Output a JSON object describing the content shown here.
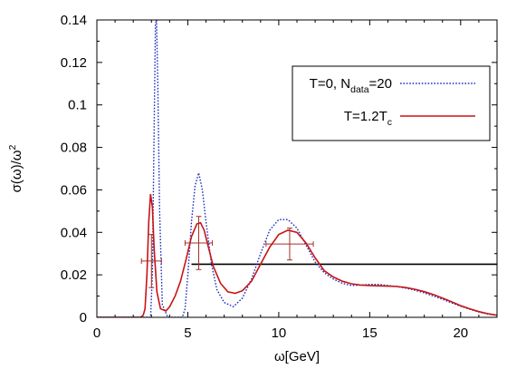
{
  "chart_data": {
    "type": "line",
    "xlabel": "ω[GeV]",
    "ylabel_main": "σ(ω)/ω",
    "ylabel_sup": "2",
    "xlim": [
      0,
      22
    ],
    "ylim": [
      0,
      0.14
    ],
    "xticks": [
      0,
      5,
      10,
      15,
      20
    ],
    "yticks": [
      0,
      0.02,
      0.04,
      0.06,
      0.08,
      0.1,
      0.12,
      0.14
    ],
    "xtick_labels": [
      "0",
      "5",
      "10",
      "15",
      "20"
    ],
    "ytick_labels": [
      "0",
      "0.02",
      "0.04",
      "0.06",
      "0.08",
      "0.1",
      "0.12",
      "0.14"
    ],
    "grid": false,
    "legend_position": "top-right",
    "series": [
      {
        "label_main": "T=0, N",
        "label_sub": "data",
        "label_tail": "=20",
        "color": "#1f2fbf",
        "style": "dotted",
        "x": [
          0,
          2.6,
          2.8,
          2.95,
          3.05,
          3.15,
          3.22,
          3.28,
          3.35,
          3.45,
          3.6,
          3.9,
          4.3,
          4.7,
          4.85,
          5.0,
          5.2,
          5.4,
          5.6,
          5.8,
          6.0,
          6.3,
          6.6,
          7.0,
          7.5,
          8.0,
          8.5,
          9.0,
          9.5,
          10.0,
          10.5,
          11.0,
          11.5,
          12.0,
          12.5,
          13.0,
          13.5,
          14.0,
          14.5,
          15.0,
          15.5,
          16.0,
          16.5,
          17.0,
          17.5,
          18.0,
          18.5,
          19.0,
          19.5,
          20.0,
          20.5,
          21.0,
          21.5,
          22.0
        ],
        "y": [
          0,
          0,
          0,
          0.0,
          0.02,
          0.09,
          0.138,
          0.14,
          0.11,
          0.05,
          0.006,
          0.0,
          0.0,
          0.0,
          0.004,
          0.02,
          0.045,
          0.062,
          0.068,
          0.06,
          0.045,
          0.025,
          0.013,
          0.007,
          0.005,
          0.009,
          0.018,
          0.03,
          0.041,
          0.046,
          0.046,
          0.042,
          0.034,
          0.026,
          0.021,
          0.018,
          0.016,
          0.015,
          0.0152,
          0.0155,
          0.0155,
          0.015,
          0.0145,
          0.0137,
          0.0127,
          0.0115,
          0.01,
          0.0085,
          0.0068,
          0.0052,
          0.0038,
          0.0025,
          0.0015,
          0.0009
        ]
      },
      {
        "label_main": "T=1.2T",
        "label_sub": "c",
        "label_tail": "",
        "color": "#c81414",
        "style": "solid",
        "x": [
          0,
          2.4,
          2.55,
          2.65,
          2.75,
          2.85,
          2.95,
          3.05,
          3.15,
          3.3,
          3.5,
          3.8,
          4.0,
          4.3,
          4.6,
          4.9,
          5.2,
          5.5,
          5.7,
          5.9,
          6.1,
          6.4,
          6.8,
          7.2,
          7.6,
          8.0,
          8.5,
          9.0,
          9.5,
          10.0,
          10.5,
          11.0,
          11.5,
          12.0,
          12.5,
          13.0,
          13.5,
          14.0,
          14.5,
          15.0,
          15.5,
          16.0,
          16.5,
          17.0,
          17.5,
          18.0,
          18.5,
          19.0,
          19.5,
          20.0,
          20.5,
          21.0,
          21.5,
          22.0
        ],
        "y": [
          0,
          0,
          0.001,
          0.004,
          0.02,
          0.045,
          0.058,
          0.052,
          0.032,
          0.012,
          0.004,
          0.003,
          0.005,
          0.01,
          0.017,
          0.027,
          0.038,
          0.044,
          0.0445,
          0.041,
          0.034,
          0.024,
          0.016,
          0.012,
          0.0113,
          0.0125,
          0.017,
          0.025,
          0.033,
          0.039,
          0.041,
          0.04,
          0.035,
          0.028,
          0.022,
          0.019,
          0.017,
          0.0158,
          0.0152,
          0.015,
          0.0148,
          0.0147,
          0.0145,
          0.014,
          0.0132,
          0.0121,
          0.0107,
          0.0091,
          0.0073,
          0.0055,
          0.004,
          0.0027,
          0.0017,
          0.001
        ]
      },
      {
        "color": "#000000",
        "style": "solid",
        "x": [
          5.2,
          22
        ],
        "y": [
          0.025,
          0.025
        ]
      }
    ],
    "error_points": [
      {
        "x": 3.0,
        "y": 0.0265,
        "xerr": 0.55,
        "yerr": 0.0125
      },
      {
        "x": 5.6,
        "y": 0.035,
        "xerr": 0.75,
        "yerr": 0.0125
      },
      {
        "x": 10.6,
        "y": 0.0345,
        "xerr": 1.3,
        "yerr": 0.0075
      }
    ],
    "error_color": "#a0302a"
  }
}
